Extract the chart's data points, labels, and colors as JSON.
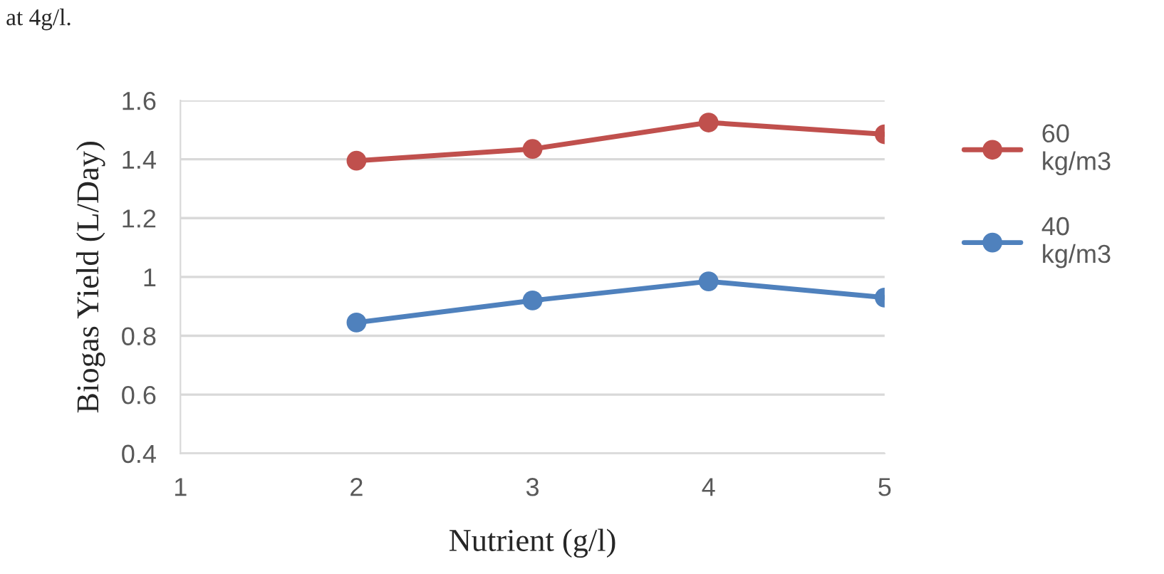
{
  "chart_data": {
    "type": "line",
    "xlabel": "Nutrient (g/l)",
    "ylabel": "Biogas Yield (L/Day)",
    "annotations": [
      "at 4g/l."
    ],
    "x": [
      2,
      3,
      4,
      5
    ],
    "series": [
      {
        "name": "60 kg/m3",
        "color": "#c0504d",
        "values": [
          1.395,
          1.435,
          1.525,
          1.485
        ]
      },
      {
        "name": "40 kg/m3",
        "color": "#4f81bd",
        "values": [
          0.845,
          0.92,
          0.985,
          0.93
        ]
      }
    ],
    "xlim": [
      1,
      5
    ],
    "xticks": [
      1,
      2,
      3,
      4,
      5
    ],
    "ylim": [
      0.4,
      1.6
    ],
    "yticks": [
      0.4,
      0.6,
      0.8,
      1,
      1.2,
      1.4,
      1.6
    ],
    "grid": "y",
    "legend": "right",
    "marker": "circle",
    "line_style": "solid"
  }
}
